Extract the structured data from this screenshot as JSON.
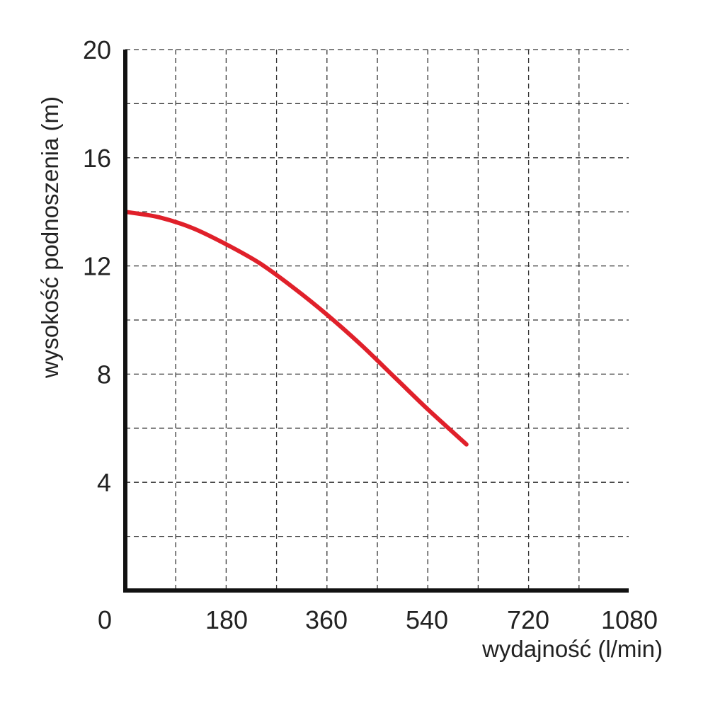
{
  "chart_data": {
    "type": "line",
    "xlabel": "wydajność (l/min)",
    "ylabel": "wysokość podnoszenia (m)",
    "x_ticks": [
      "0",
      "180",
      "360",
      "540",
      "720",
      "1080"
    ],
    "y_ticks": [
      "4",
      "8",
      "12",
      "16",
      "20"
    ],
    "ylim": [
      0,
      20
    ],
    "grid": true,
    "series": [
      {
        "color": "#e0202a",
        "points": [
          [
            0,
            14.0
          ],
          [
            60,
            13.8
          ],
          [
            120,
            13.4
          ],
          [
            180,
            12.8
          ],
          [
            240,
            12.1
          ],
          [
            300,
            11.2
          ],
          [
            360,
            10.2
          ],
          [
            420,
            9.1
          ],
          [
            480,
            7.9
          ],
          [
            540,
            6.7
          ],
          [
            609,
            5.4
          ]
        ]
      }
    ]
  }
}
